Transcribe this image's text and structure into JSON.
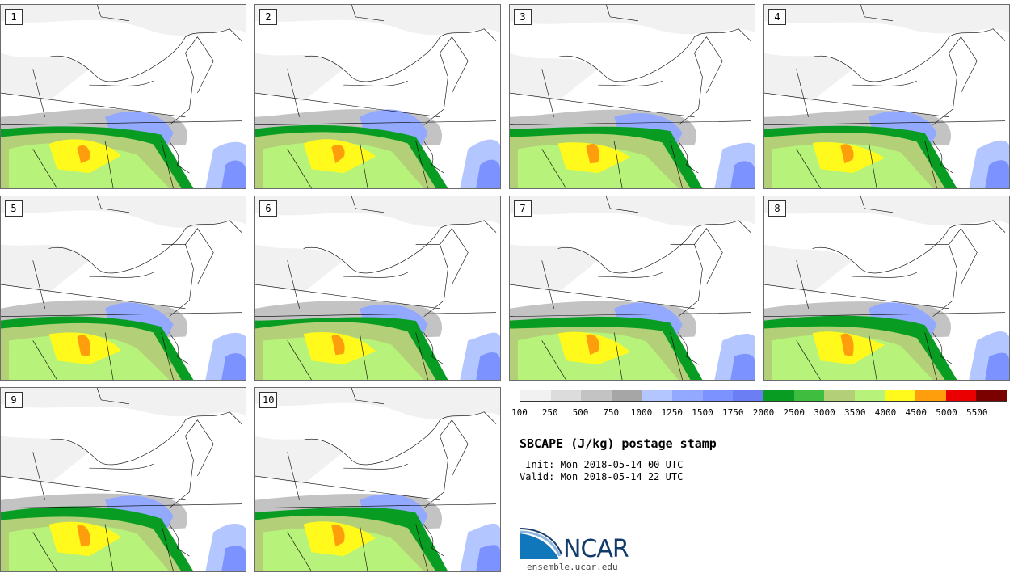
{
  "panels": [
    {
      "member": "1"
    },
    {
      "member": "2"
    },
    {
      "member": "3"
    },
    {
      "member": "4"
    },
    {
      "member": "5"
    },
    {
      "member": "6"
    },
    {
      "member": "7"
    },
    {
      "member": "8"
    },
    {
      "member": "9"
    },
    {
      "member": "10"
    }
  ],
  "legend": {
    "tick_labels": [
      "100",
      "250",
      "500",
      "750",
      "1000",
      "1250",
      "1500",
      "1750",
      "2000",
      "2500",
      "3000",
      "3500",
      "4000",
      "4500",
      "5000",
      "5500"
    ],
    "colors": [
      "#f1f1f1",
      "#dcdcdc",
      "#c3c3c3",
      "#a6a6a6",
      "#b4c6ff",
      "#93a9ff",
      "#7b92ff",
      "#6c7ef4",
      "#089d22",
      "#3fbd3f",
      "#b3cf78",
      "#b7f27a",
      "#fffa1c",
      "#ff9e0d",
      "#ea0000",
      "#7b0000"
    ]
  },
  "title": "SBCAPE (J/kg) postage stamp",
  "init": " Init: Mon 2018-05-14 00 UTC",
  "valid": "Valid: Mon 2018-05-14 22 UTC",
  "logo": {
    "text": "NCAR",
    "colors": {
      "swoosh": "#1177bb",
      "text": "#123a6b"
    }
  },
  "site": "ensemble.ucar.edu"
}
